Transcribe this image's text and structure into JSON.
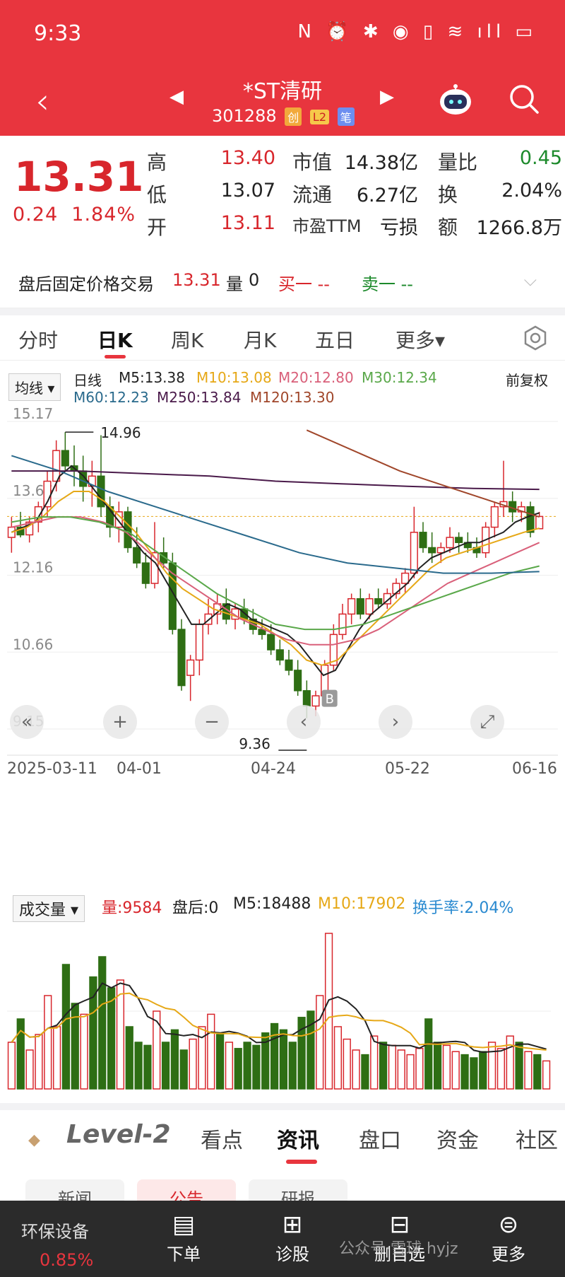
{
  "status": {
    "time": "9:33",
    "icons": "N ⏰ ✱ ◉ ▯ ≋ ıll ▭"
  },
  "nav": {
    "back": "‹",
    "title": "*ST清研",
    "code": "301288",
    "tags": [
      "创",
      "L2",
      "笔"
    ],
    "prev": "◀",
    "next": "▶"
  },
  "quote": {
    "price": "13.31",
    "change": "0.24",
    "change_pct": "1.84%",
    "labels": {
      "high": "高",
      "low": "低",
      "open": "开",
      "mcap": "市值",
      "float": "流通",
      "pe": "市盈TTM",
      "volratio": "量比",
      "turnover": "换",
      "amount": "额"
    },
    "values": {
      "high": "13.40",
      "low": "13.07",
      "open": "13.11",
      "mcap": "14.38亿",
      "float": "6.27亿",
      "pe": "亏损",
      "volratio": "0.45",
      "turnover": "2.04%",
      "amount": "1266.8万"
    }
  },
  "afterhours": {
    "label": "盘后固定价格交易",
    "price": "13.31",
    "vol_label": "量",
    "vol": "0",
    "buy": "买一 --",
    "sell": "卖一 --"
  },
  "tabs": [
    "分时",
    "日K",
    "周K",
    "月K",
    "五日",
    "更多▾"
  ],
  "legend": {
    "selector": "均线 ▾",
    "type": "日线",
    "ma": [
      {
        "text": "M5:13.38",
        "color": "#222222"
      },
      {
        "text": "M10:13.08",
        "color": "#e6a817"
      },
      {
        "text": "M20:12.80",
        "color": "#d9607a"
      },
      {
        "text": "M30:12.34",
        "color": "#5aa84a"
      },
      {
        "text": "M60:12.23",
        "color": "#2a6a8c"
      },
      {
        "text": "M250:13.84",
        "color": "#4a1a4a"
      },
      {
        "text": "M120:13.30",
        "color": "#a0462a"
      }
    ],
    "adjust": "前复权"
  },
  "chart_data": {
    "type": "candlestick",
    "y_ticks": [
      "15.17",
      "13.66",
      "12.16",
      "10.66",
      "9.15"
    ],
    "ylim": [
      9.15,
      15.17
    ],
    "x_ticks": [
      "2025-03-11",
      "04-01",
      "04-24",
      "05-22",
      "06-16"
    ],
    "annotations": {
      "high": "14.96",
      "low": "9.36",
      "marker": "B"
    },
    "ohlc": [
      [
        12.9,
        13.3,
        12.6,
        13.1
      ],
      [
        13.1,
        13.4,
        12.9,
        12.95
      ],
      [
        12.95,
        13.3,
        12.8,
        13.2
      ],
      [
        13.2,
        13.6,
        13.0,
        13.5
      ],
      [
        13.5,
        14.2,
        13.3,
        14.0
      ],
      [
        14.0,
        14.8,
        13.8,
        14.6
      ],
      [
        14.6,
        14.96,
        14.2,
        14.3
      ],
      [
        14.3,
        14.7,
        13.9,
        14.2
      ],
      [
        14.2,
        14.5,
        13.6,
        13.9
      ],
      [
        13.9,
        14.4,
        13.5,
        14.1
      ],
      [
        14.1,
        14.9,
        13.3,
        13.5
      ],
      [
        13.5,
        13.7,
        12.9,
        13.1
      ],
      [
        13.1,
        13.6,
        12.8,
        13.4
      ],
      [
        13.4,
        13.5,
        12.6,
        12.7
      ],
      [
        12.7,
        13.1,
        12.3,
        12.4
      ],
      [
        12.4,
        12.6,
        11.9,
        12.0
      ],
      [
        12.0,
        13.2,
        11.9,
        12.6
      ],
      [
        12.6,
        12.9,
        12.3,
        12.4
      ],
      [
        12.4,
        12.6,
        11.0,
        11.1
      ],
      [
        11.1,
        11.3,
        9.9,
        10.0
      ],
      [
        10.2,
        10.6,
        9.7,
        10.5
      ],
      [
        10.5,
        11.3,
        10.2,
        11.2
      ],
      [
        11.2,
        11.7,
        11.0,
        11.4
      ],
      [
        11.4,
        11.8,
        11.2,
        11.6
      ],
      [
        11.6,
        11.9,
        11.2,
        11.3
      ],
      [
        11.3,
        11.6,
        11.1,
        11.5
      ],
      [
        11.5,
        11.7,
        11.2,
        11.3
      ],
      [
        11.3,
        11.5,
        11.0,
        11.1
      ],
      [
        11.1,
        11.3,
        10.9,
        11.0
      ],
      [
        11.0,
        11.2,
        10.6,
        10.7
      ],
      [
        10.7,
        10.9,
        10.4,
        10.5
      ],
      [
        10.5,
        10.7,
        10.2,
        10.3
      ],
      [
        10.3,
        10.5,
        9.8,
        9.9
      ],
      [
        9.9,
        10.1,
        9.36,
        9.6
      ],
      [
        9.6,
        9.9,
        9.4,
        9.8
      ],
      [
        9.8,
        10.5,
        9.7,
        10.4
      ],
      [
        10.4,
        11.2,
        10.3,
        11.0
      ],
      [
        11.0,
        11.6,
        10.9,
        11.4
      ],
      [
        11.4,
        11.8,
        11.2,
        11.7
      ],
      [
        11.7,
        11.9,
        11.3,
        11.4
      ],
      [
        11.4,
        11.8,
        11.3,
        11.7
      ],
      [
        11.7,
        11.9,
        11.5,
        11.6
      ],
      [
        11.6,
        11.9,
        11.5,
        11.8
      ],
      [
        11.8,
        12.1,
        11.7,
        12.0
      ],
      [
        12.0,
        12.3,
        11.8,
        12.2
      ],
      [
        12.2,
        13.5,
        12.1,
        13.0
      ],
      [
        13.0,
        13.2,
        12.6,
        12.7
      ],
      [
        12.7,
        13.0,
        12.4,
        12.6
      ],
      [
        12.6,
        12.8,
        12.4,
        12.7
      ],
      [
        12.7,
        13.1,
        12.6,
        12.9
      ],
      [
        12.9,
        13.0,
        12.6,
        12.8
      ],
      [
        12.8,
        13.0,
        12.6,
        12.7
      ],
      [
        12.7,
        12.9,
        12.5,
        12.6
      ],
      [
        12.6,
        13.2,
        12.5,
        13.1
      ],
      [
        13.1,
        13.6,
        12.9,
        13.5
      ],
      [
        13.5,
        14.4,
        13.3,
        13.6
      ],
      [
        13.6,
        13.8,
        13.2,
        13.4
      ],
      [
        13.4,
        13.6,
        13.2,
        13.5
      ],
      [
        13.5,
        13.6,
        12.9,
        13.0
      ],
      [
        13.07,
        13.4,
        13.07,
        13.31
      ]
    ],
    "series": [
      {
        "name": "M5",
        "color": "#222222",
        "values": [
          13.0,
          13.1,
          13.2,
          13.6,
          14.1,
          14.3,
          14.1,
          13.8,
          13.5,
          13.2,
          12.9,
          12.6,
          12.4,
          12.0,
          11.6,
          11.2,
          11.2,
          11.4,
          11.6,
          11.5,
          11.3,
          11.2,
          11.1,
          11.0,
          10.8,
          10.5,
          10.2,
          10.3,
          10.7,
          11.1,
          11.4,
          11.6,
          11.8,
          12.0,
          12.3,
          12.5,
          12.6,
          12.7,
          12.8,
          12.8,
          12.9,
          13.0,
          13.2,
          13.3,
          13.38
        ]
      },
      {
        "name": "M10",
        "color": "#e6a817",
        "values": [
          13.0,
          13.1,
          13.3,
          13.6,
          13.8,
          13.8,
          13.6,
          13.3,
          13.0,
          12.6,
          12.2,
          11.9,
          11.7,
          11.5,
          11.4,
          11.3,
          11.2,
          11.0,
          10.8,
          10.5,
          10.4,
          10.5,
          10.8,
          11.1,
          11.4,
          11.7,
          12.0,
          12.3,
          12.5,
          12.6,
          12.7,
          12.8,
          12.9,
          13.0,
          13.08
        ]
      },
      {
        "name": "M20",
        "color": "#d9607a",
        "values": [
          13.1,
          13.2,
          13.3,
          13.3,
          13.2,
          13.0,
          12.6,
          12.2,
          11.9,
          11.6,
          11.3,
          11.1,
          10.9,
          10.8,
          10.8,
          10.9,
          11.1,
          11.4,
          11.7,
          12.0,
          12.2,
          12.4,
          12.6,
          12.8
        ]
      },
      {
        "name": "M30",
        "color": "#5aa84a",
        "values": [
          13.2,
          13.3,
          13.3,
          13.2,
          13.0,
          12.6,
          12.2,
          11.8,
          11.5,
          11.2,
          11.1,
          11.1,
          11.2,
          11.4,
          11.6,
          11.8,
          12.0,
          12.2,
          12.34
        ]
      },
      {
        "name": "M60",
        "color": "#2a6a8c",
        "values": [
          14.5,
          14.2,
          13.8,
          13.5,
          13.2,
          12.9,
          12.6,
          12.4,
          12.3,
          12.2,
          12.2,
          12.23
        ]
      },
      {
        "name": "M250",
        "color": "#4a1a4a",
        "values": [
          14.2,
          14.2,
          14.15,
          14.1,
          14.0,
          13.95,
          13.9,
          13.86,
          13.84
        ]
      },
      {
        "name": "M120",
        "color": "#a0462a",
        "values": [
          15.0,
          14.6,
          14.2,
          13.9,
          13.6,
          13.3
        ]
      }
    ]
  },
  "volume": {
    "selector": "成交量 ▾",
    "items": [
      {
        "text": "量:9584",
        "color": "#d8262c"
      },
      {
        "text": "盘后:0",
        "color": "#222222"
      },
      {
        "text": "M5:18488",
        "color": "#222222"
      },
      {
        "text": "M10:17902",
        "color": "#e6a817"
      },
      {
        "text": "换手率:2.04%",
        "color": "#2a8ad0"
      }
    ],
    "values": [
      30,
      45,
      25,
      35,
      60,
      40,
      80,
      55,
      48,
      72,
      85,
      65,
      70,
      40,
      30,
      28,
      50,
      30,
      38,
      25,
      32,
      40,
      48,
      35,
      30,
      26,
      30,
      28,
      36,
      42,
      38,
      30,
      46,
      50,
      60,
      100,
      40,
      32,
      25,
      22,
      34,
      30,
      28,
      25,
      22,
      26,
      45,
      30,
      28,
      24,
      22,
      20,
      24,
      30,
      26,
      34,
      30,
      24,
      22,
      18
    ],
    "up": [
      1,
      0,
      1,
      1,
      1,
      1,
      0,
      0,
      1,
      0,
      0,
      0,
      1,
      0,
      0,
      0,
      1,
      0,
      0,
      0,
      1,
      1,
      1,
      0,
      1,
      0,
      0,
      0,
      0,
      0,
      0,
      0,
      0,
      0,
      1,
      1,
      1,
      1,
      1,
      0,
      1,
      0,
      1,
      1,
      1,
      1,
      0,
      0,
      1,
      1,
      0,
      0,
      0,
      1,
      1,
      1,
      0,
      1,
      0,
      1
    ]
  },
  "infotabs": {
    "level2": "Level-2",
    "tabs": [
      "看点",
      "资讯",
      "盘口",
      "资金",
      "社区"
    ]
  },
  "subtabs": [
    "新闻",
    "公告",
    "研报"
  ],
  "bottom": {
    "sector": "环保设备",
    "sector_pct": "0.85%",
    "items": [
      {
        "icon": "▤",
        "label": "下单"
      },
      {
        "icon": "⊞",
        "label": "诊股"
      },
      {
        "icon": "⊟",
        "label": "删自选"
      },
      {
        "icon": "⊜",
        "label": "更多"
      }
    ],
    "watermark": "公众号·雪球 hyjz"
  }
}
